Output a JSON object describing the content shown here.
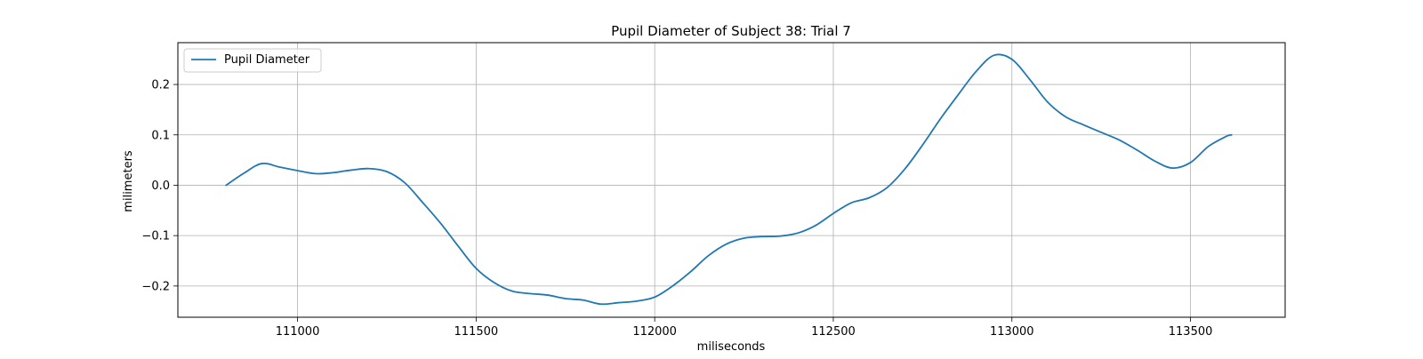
{
  "chart_data": {
    "type": "line",
    "title": "Pupil Diameter of Subject 38: Trial 7",
    "xlabel": "miliseconds",
    "ylabel": "milimeters",
    "xlim": [
      110665,
      113765
    ],
    "ylim": [
      -0.262,
      0.283
    ],
    "xticks": [
      111000,
      111500,
      112000,
      112500,
      113000,
      113500
    ],
    "yticks": [
      0.2,
      0.1,
      0.0,
      -0.1,
      -0.2
    ],
    "ytick_labels": [
      "0.2",
      "0.1",
      "0.0",
      "−0.1",
      "−0.2"
    ],
    "grid": true,
    "legend_position": "upper-left",
    "series": [
      {
        "name": "Pupil Diameter",
        "color": "#1f77b4",
        "x": [
          110800,
          110850,
          110900,
          110950,
          111000,
          111050,
          111100,
          111150,
          111200,
          111250,
          111300,
          111350,
          111400,
          111450,
          111500,
          111550,
          111600,
          111650,
          111700,
          111750,
          111800,
          111850,
          111900,
          111950,
          112000,
          112050,
          112100,
          112150,
          112200,
          112250,
          112300,
          112350,
          112400,
          112450,
          112500,
          112550,
          112600,
          112650,
          112700,
          112750,
          112800,
          112850,
          112900,
          112950,
          113000,
          113050,
          113100,
          113150,
          113200,
          113250,
          113300,
          113350,
          113400,
          113450,
          113500,
          113550,
          113600,
          113615
        ],
        "y": [
          0.0,
          0.024,
          0.043,
          0.036,
          0.029,
          0.023,
          0.025,
          0.03,
          0.033,
          0.027,
          0.005,
          -0.034,
          -0.075,
          -0.121,
          -0.165,
          -0.193,
          -0.21,
          -0.215,
          -0.218,
          -0.225,
          -0.228,
          -0.236,
          -0.233,
          -0.23,
          -0.222,
          -0.2,
          -0.172,
          -0.14,
          -0.117,
          -0.105,
          -0.102,
          -0.101,
          -0.095,
          -0.08,
          -0.056,
          -0.035,
          -0.025,
          -0.005,
          0.032,
          0.08,
          0.132,
          0.18,
          0.226,
          0.258,
          0.25,
          0.21,
          0.165,
          0.136,
          0.12,
          0.105,
          0.09,
          0.07,
          0.048,
          0.034,
          0.045,
          0.077,
          0.097,
          0.1
        ]
      }
    ]
  }
}
